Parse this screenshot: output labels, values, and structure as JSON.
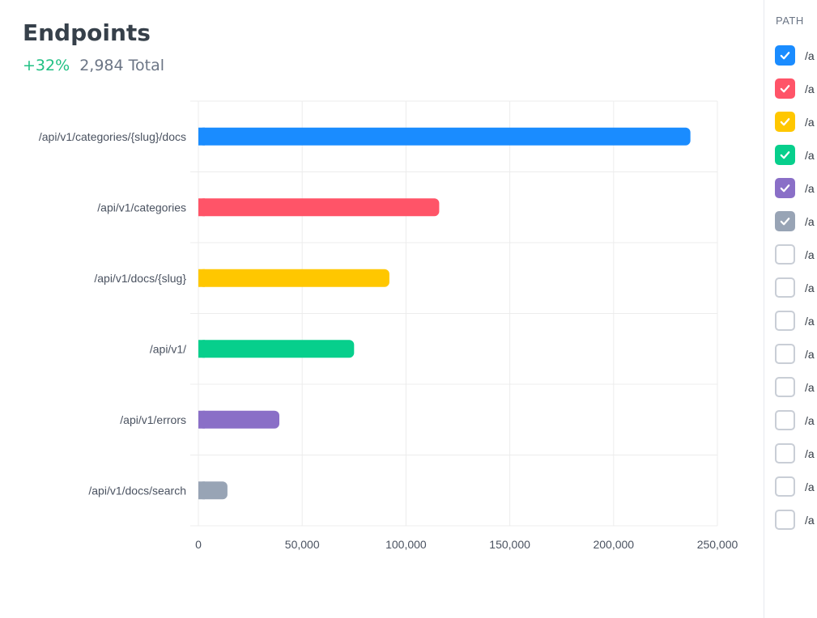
{
  "header": {
    "title": "Endpoints",
    "delta": "+32%",
    "total": "2,984 Total"
  },
  "colors": {
    "accent_green": "#20c083",
    "checkbox_unchecked": "#c9ced6"
  },
  "chart_data": {
    "type": "bar",
    "orientation": "horizontal",
    "categories": [
      "/api/v1/categories/{slug}/docs",
      "/api/v1/categories",
      "/api/v1/docs/{slug}",
      "/api/v1/",
      "/api/v1/errors",
      "/api/v1/docs/search"
    ],
    "values": [
      237000,
      116000,
      92000,
      75000,
      39000,
      14000
    ],
    "colors": [
      "#1a8cff",
      "#ff5468",
      "#ffc700",
      "#07cf8c",
      "#8a6fc7",
      "#98a4b5"
    ],
    "xlim": [
      0,
      250000
    ],
    "xticks": [
      0,
      50000,
      100000,
      150000,
      200000,
      250000
    ],
    "xtick_labels": [
      "0",
      "50,000",
      "100,000",
      "150,000",
      "200,000",
      "250,000"
    ],
    "grid": true
  },
  "legend": {
    "header": "PATH",
    "items": [
      {
        "label": "/a",
        "checked": true,
        "color": "#1a8cff"
      },
      {
        "label": "/a",
        "checked": true,
        "color": "#ff5468"
      },
      {
        "label": "/a",
        "checked": true,
        "color": "#ffc700"
      },
      {
        "label": "/a",
        "checked": true,
        "color": "#07cf8c"
      },
      {
        "label": "/a",
        "checked": true,
        "color": "#8a6fc7"
      },
      {
        "label": "/a",
        "checked": true,
        "color": "#98a4b5"
      },
      {
        "label": "/a",
        "checked": false
      },
      {
        "label": "/a",
        "checked": false
      },
      {
        "label": "/a",
        "checked": false
      },
      {
        "label": "/a",
        "checked": false
      },
      {
        "label": "/a",
        "checked": false
      },
      {
        "label": "/a",
        "checked": false
      },
      {
        "label": "/a",
        "checked": false
      },
      {
        "label": "/a",
        "checked": false
      },
      {
        "label": "/a",
        "checked": false
      }
    ]
  }
}
